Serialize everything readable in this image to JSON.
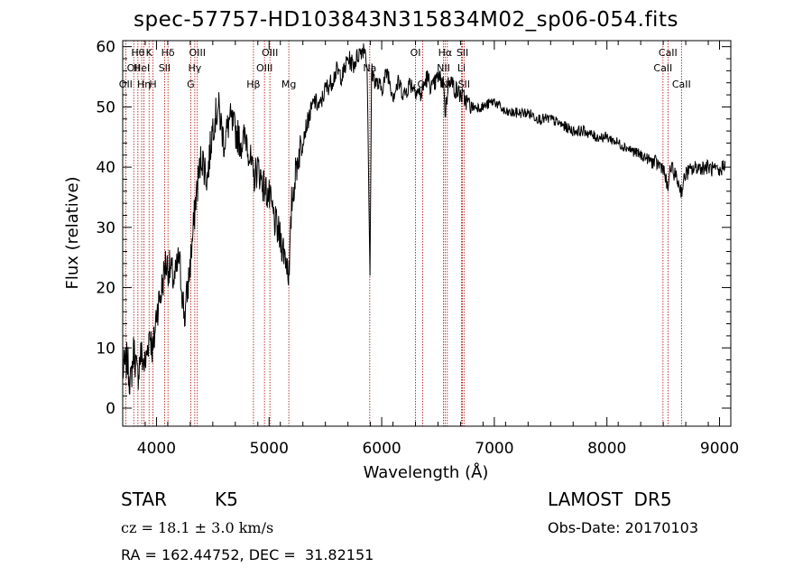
{
  "chart_data": {
    "type": "line",
    "title": "spec-57757-HD103843N315834M02_sp06-054.fits",
    "xlabel": "Wavelength (Å)",
    "ylabel": "Flux (relative)",
    "xlim": [
      3700,
      9100
    ],
    "ylim": [
      -3,
      61
    ],
    "xticks": [
      4000,
      5000,
      6000,
      7000,
      8000,
      9000
    ],
    "yticks": [
      0,
      10,
      20,
      30,
      40,
      50,
      60
    ],
    "grid": false,
    "series": [
      {
        "x": [
          3700,
          3740,
          3770,
          3800,
          3830,
          3860,
          3900,
          3940,
          3970,
          4000,
          4040,
          4080,
          4120,
          4160,
          4200,
          4250,
          4290,
          4320,
          4350,
          4400,
          4450,
          4500,
          4550,
          4600,
          4650,
          4700,
          4750,
          4800,
          4860,
          4900,
          4950,
          5000,
          5050,
          5100,
          5150,
          5180,
          5200,
          5250,
          5300,
          5350,
          5400,
          5450,
          5500,
          5550,
          5600,
          5650,
          5700,
          5750,
          5800,
          5850,
          5870,
          5890,
          5896,
          5910,
          5950,
          6000,
          6050,
          6100,
          6150,
          6200,
          6250,
          6300,
          6350,
          6400,
          6450,
          6500,
          6550,
          6563,
          6600,
          6650,
          6700,
          6750,
          6800,
          6900,
          7000,
          7100,
          7200,
          7300,
          7400,
          7500,
          7600,
          7700,
          7800,
          7900,
          8000,
          8100,
          8200,
          8300,
          8400,
          8500,
          8542,
          8560,
          8600,
          8662,
          8700,
          8800,
          8900,
          9000,
          9050
        ],
        "y": [
          6,
          8,
          4,
          10,
          5,
          9,
          7,
          13,
          9,
          16,
          19,
          24,
          23,
          21,
          25,
          15,
          22,
          28,
          35,
          42,
          38,
          47,
          50,
          44,
          48,
          46,
          44,
          45,
          38,
          40,
          37,
          35,
          31,
          28,
          25,
          22,
          34,
          41,
          45,
          48,
          51,
          50,
          53,
          54,
          56,
          55,
          58,
          57,
          59,
          60,
          57,
          30,
          22,
          56,
          54,
          53,
          56,
          52,
          54,
          52,
          54,
          53,
          52,
          55,
          53,
          55,
          54,
          49,
          55,
          53,
          52,
          51,
          50,
          50,
          51,
          49,
          49,
          49,
          48,
          48,
          47,
          46,
          46,
          45,
          45,
          44,
          43,
          42,
          41,
          40,
          36,
          40,
          39,
          36,
          39,
          40,
          40,
          39,
          41
        ]
      }
    ],
    "line_markers": [
      {
        "wl": 3727,
        "row": 3,
        "label": "OII"
      },
      {
        "wl": 3798,
        "row": 2,
        "label": "OII"
      },
      {
        "wl": 3835,
        "row": 1,
        "label": "Hθ"
      },
      {
        "wl": 3869,
        "row": 2,
        "label": "HeI"
      },
      {
        "wl": 3889,
        "row": 3,
        "label": "Hη"
      },
      {
        "wl": 3934,
        "row": 1,
        "label": "K"
      },
      {
        "wl": 3969,
        "row": 3,
        "label": "H"
      },
      {
        "wl": 4072,
        "row": 2,
        "label": "SII"
      },
      {
        "wl": 4102,
        "row": 1,
        "label": "Hδ"
      },
      {
        "wl": 4304,
        "row": 3,
        "label": "G"
      },
      {
        "wl": 4340,
        "row": 2,
        "label": "Hγ"
      },
      {
        "wl": 4363,
        "row": 1,
        "label": "OIII"
      },
      {
        "wl": 4861,
        "row": 3,
        "label": "Hβ"
      },
      {
        "wl": 4959,
        "row": 2,
        "label": "OIII"
      },
      {
        "wl": 5007,
        "row": 1,
        "label": "OIII"
      },
      {
        "wl": 5175,
        "row": 3,
        "label": "Mg"
      },
      {
        "wl": 5894,
        "row": 2,
        "label": "Na"
      },
      {
        "wl": 6300,
        "row": 1,
        "label": "OI"
      },
      {
        "wl": 6364,
        "row": 3,
        "label": "OI"
      },
      {
        "wl": 6548,
        "row": 2,
        "label": "NII"
      },
      {
        "wl": 6563,
        "row": 1,
        "label": "Hα"
      },
      {
        "wl": 6583,
        "row": 3,
        "label": "NII"
      },
      {
        "wl": 6708,
        "row": 2,
        "label": "Li"
      },
      {
        "wl": 6717,
        "row": 1,
        "label": "SII"
      },
      {
        "wl": 6731,
        "row": 3,
        "label": "SII"
      },
      {
        "wl": 8498,
        "row": 2,
        "label": "CaII"
      },
      {
        "wl": 8542,
        "row": 1,
        "label": "CaII"
      },
      {
        "wl": 8662,
        "row": 3,
        "label": "CaII"
      }
    ]
  },
  "info": {
    "class_label": "STAR",
    "subclass": "K5",
    "survey": "LAMOST DR5",
    "cz": "cz = 18.1 ± 3.0 km/s",
    "obs_date": "Obs-Date: 20170103",
    "radec": "RA = 162.44752, DEC =  31.82151"
  },
  "colors": {
    "spectrum": "#000000",
    "marker_line": "#b00000",
    "axis": "#000000"
  }
}
